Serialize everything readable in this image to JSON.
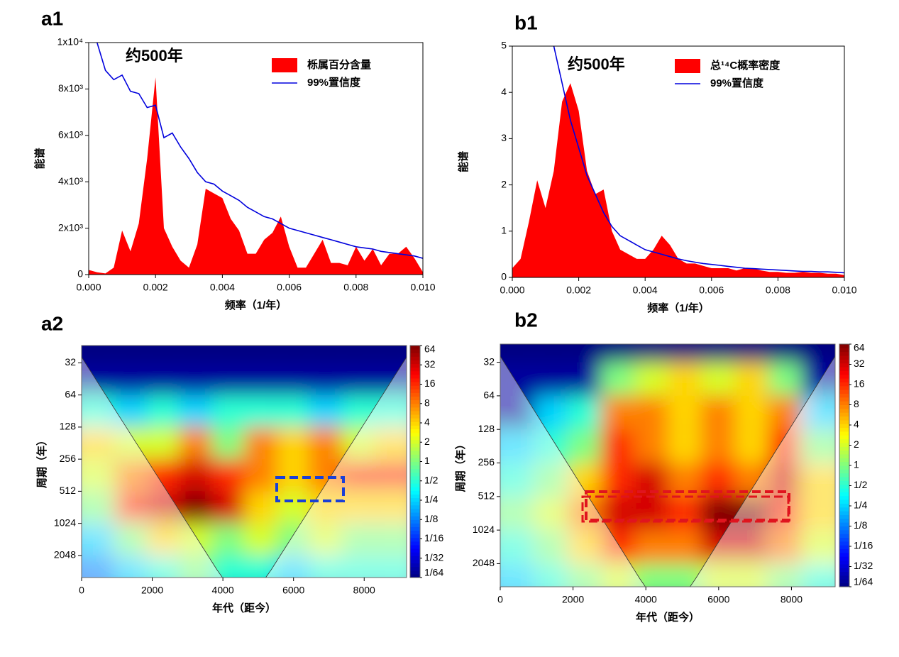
{
  "chart_data": [
    {
      "type": "area",
      "label": "a1",
      "annotation": "约500年",
      "xlabel": "频率（1/年）",
      "ylabel": "能谱",
      "xlim": [
        0,
        0.01
      ],
      "ylim": [
        0,
        10000
      ],
      "xticks": [
        {
          "value": 0,
          "label": "0.000"
        },
        0.002,
        0.004,
        0.006,
        0.008,
        {
          "value": 0.01,
          "label": "0.010"
        }
      ],
      "yticks": [
        0,
        {
          "value": 2000,
          "label": "2x10³"
        },
        {
          "value": 4000,
          "label": "4x10³"
        },
        {
          "value": 6000,
          "label": "6x10³"
        },
        {
          "value": 8000,
          "label": "8x10³"
        },
        {
          "value": 10000,
          "label": "1x10⁴"
        }
      ],
      "x": [
        0,
        0.00025,
        0.0005,
        0.00075,
        0.001,
        0.00125,
        0.0015,
        0.00175,
        0.002,
        0.00225,
        0.0025,
        0.00275,
        0.003,
        0.00325,
        0.0035,
        0.00375,
        0.004,
        0.00425,
        0.0045,
        0.00475,
        0.005,
        0.00525,
        0.0055,
        0.00575,
        0.006,
        0.00625,
        0.0065,
        0.00675,
        0.007,
        0.00725,
        0.0075,
        0.00775,
        0.008,
        0.00825,
        0.0085,
        0.00875,
        0.009,
        0.00925,
        0.0095,
        0.00975,
        0.01
      ],
      "series": [
        {
          "name": "栎属百分含量",
          "color": "#ff0000",
          "kind": "area",
          "values": [
            200,
            100,
            50,
            300,
            1900,
            1000,
            2200,
            5000,
            8500,
            2000,
            1200,
            600,
            300,
            1300,
            3700,
            3500,
            3300,
            2400,
            1900,
            900,
            900,
            1500,
            1800,
            2500,
            1200,
            300,
            300,
            900,
            1500,
            500,
            500,
            400,
            1200,
            600,
            1100,
            400,
            900,
            900,
            1200,
            700,
            100
          ]
        },
        {
          "name": "99%置信度",
          "color": "#0000dd",
          "kind": "line",
          "values": [
            null,
            10000,
            8800,
            8400,
            8600,
            7900,
            7800,
            7200,
            7300,
            5900,
            6100,
            5500,
            5000,
            4400,
            4000,
            3900,
            3600,
            3400,
            3200,
            2900,
            2700,
            2500,
            2400,
            2200,
            2000,
            1900,
            1800,
            1700,
            1600,
            1500,
            1400,
            1300,
            1200,
            1150,
            1100,
            1000,
            950,
            900,
            850,
            800,
            700
          ]
        }
      ]
    },
    {
      "type": "area",
      "label": "b1",
      "annotation": "约500年",
      "xlabel": "频率（1/年）",
      "ylabel": "能谱",
      "xlim": [
        0,
        0.01
      ],
      "ylim": [
        0,
        5
      ],
      "xticks": [
        {
          "value": 0,
          "label": "0.000"
        },
        0.002,
        0.004,
        0.006,
        0.008,
        {
          "value": 0.01,
          "label": "0.010"
        }
      ],
      "yticks": [
        0,
        1,
        2,
        3,
        4,
        5
      ],
      "x": [
        0,
        0.00025,
        0.0005,
        0.00075,
        0.001,
        0.00125,
        0.0015,
        0.00175,
        0.002,
        0.00225,
        0.0025,
        0.00275,
        0.003,
        0.00325,
        0.0035,
        0.00375,
        0.004,
        0.00425,
        0.0045,
        0.00475,
        0.005,
        0.00525,
        0.0055,
        0.00575,
        0.006,
        0.00625,
        0.0065,
        0.00675,
        0.007,
        0.00725,
        0.0075,
        0.00775,
        0.008,
        0.00825,
        0.0085,
        0.00875,
        0.009,
        0.00925,
        0.0095,
        0.00975,
        0.01
      ],
      "series": [
        {
          "name": "总¹⁴C概率密度",
          "color": "#ff0000",
          "kind": "area",
          "values": [
            0.2,
            0.4,
            1.2,
            2.1,
            1.5,
            2.3,
            3.8,
            4.2,
            3.6,
            2.3,
            1.8,
            1.9,
            1.0,
            0.6,
            0.5,
            0.4,
            0.4,
            0.6,
            0.9,
            0.7,
            0.4,
            0.3,
            0.3,
            0.25,
            0.2,
            0.2,
            0.2,
            0.15,
            0.2,
            0.2,
            0.15,
            0.12,
            0.12,
            0.1,
            0.1,
            0.12,
            0.1,
            0.1,
            0.08,
            0.08,
            0.05
          ]
        },
        {
          "name": "99%置信度",
          "color": "#0000dd",
          "kind": "line",
          "values": [
            null,
            null,
            null,
            null,
            null,
            5.0,
            4.2,
            3.4,
            2.8,
            2.2,
            1.8,
            1.4,
            1.1,
            0.9,
            0.8,
            0.7,
            0.6,
            0.55,
            0.5,
            0.45,
            0.4,
            0.36,
            0.33,
            0.3,
            0.28,
            0.26,
            0.24,
            0.22,
            0.2,
            0.19,
            0.18,
            0.17,
            0.16,
            0.15,
            0.14,
            0.13,
            0.13,
            0.12,
            0.12,
            0.11,
            0.1
          ]
        }
      ]
    },
    {
      "type": "heatmap",
      "label": "a2",
      "xlabel": "年代（距今）",
      "ylabel": "周期（年）",
      "xlim": [
        0,
        9200
      ],
      "ylim": [
        22,
        3300
      ],
      "ylog": true,
      "yreverse": true,
      "xticks": [
        0,
        2000,
        4000,
        6000,
        8000
      ],
      "yticks": [
        32,
        64,
        128,
        256,
        512,
        1024,
        2048
      ],
      "xbins": [
        0,
        920,
        1840,
        2760,
        3680,
        4600,
        5520,
        6440,
        7360,
        8280,
        9200
      ],
      "ybins": [
        22,
        32,
        64,
        128,
        256,
        512,
        1024,
        2048,
        3300
      ],
      "clim": [
        0.015625,
        64
      ],
      "cticks": [
        64,
        32,
        16,
        8,
        4,
        2,
        1,
        {
          "value": 0.5,
          "label": "1/2"
        },
        {
          "value": 0.25,
          "label": "1/4"
        },
        {
          "value": 0.125,
          "label": "1/8"
        },
        {
          "value": 0.0625,
          "label": "1/16"
        },
        {
          "value": 0.03125,
          "label": "1/32"
        },
        {
          "value": 0.015625,
          "label": "1/64"
        }
      ],
      "z": [
        [
          0.015625,
          0.015625,
          0.015625,
          0.015625,
          0.015625,
          0.015625,
          0.015625,
          0.015625,
          0.015625,
          0.015625
        ],
        [
          0.02,
          0.02,
          0.02,
          0.02,
          0.02,
          0.02,
          0.02,
          0.02,
          0.02,
          0.02
        ],
        [
          0.5,
          0.25,
          0.5,
          0.25,
          0.5,
          0.5,
          0.5,
          0.25,
          0.5,
          0.5
        ],
        [
          4,
          2,
          2,
          8,
          1,
          8,
          4,
          8,
          2,
          4
        ],
        [
          2,
          8,
          16,
          32,
          16,
          8,
          4,
          8,
          16,
          16
        ],
        [
          1,
          16,
          32,
          64,
          32,
          4,
          2,
          4,
          4,
          4
        ],
        [
          0.25,
          1,
          4,
          2,
          1,
          2,
          1,
          2,
          1,
          1
        ],
        [
          0.125,
          0.25,
          0.5,
          1,
          0.5,
          0.5,
          0.25,
          0.5,
          0.5,
          0.5
        ]
      ]
    },
    {
      "type": "heatmap",
      "label": "b2",
      "xlabel": "年代（距今）",
      "ylabel": "周期（年）",
      "xlim": [
        0,
        9200
      ],
      "ylim": [
        22,
        3300
      ],
      "ylog": true,
      "yreverse": true,
      "xticks": [
        0,
        2000,
        4000,
        6000,
        8000
      ],
      "yticks": [
        32,
        64,
        128,
        256,
        512,
        1024,
        2048
      ],
      "xbins": [
        0,
        920,
        1840,
        2760,
        3680,
        4600,
        5520,
        6440,
        7360,
        8280,
        9200
      ],
      "ybins": [
        22,
        32,
        64,
        128,
        256,
        512,
        1024,
        2048,
        3300
      ],
      "clim": [
        0.015625,
        64
      ],
      "cticks": [
        64,
        32,
        16,
        8,
        4,
        2,
        1,
        {
          "value": 0.5,
          "label": "1/2"
        },
        {
          "value": 0.25,
          "label": "1/4"
        },
        {
          "value": 0.125,
          "label": "1/8"
        },
        {
          "value": 0.0625,
          "label": "1/16"
        },
        {
          "value": 0.03125,
          "label": "1/32"
        },
        {
          "value": 0.015625,
          "label": "1/64"
        }
      ],
      "z": [
        [
          0.015625,
          0.015625,
          0.015625,
          0.015625,
          0.015625,
          0.015625,
          0.015625,
          0.015625,
          0.015625,
          0.015625
        ],
        [
          0.02,
          0.02,
          0.02,
          1,
          2,
          4,
          2,
          4,
          1,
          0.02
        ],
        [
          0.02,
          0.25,
          0.5,
          8,
          8,
          4,
          8,
          4,
          8,
          0.25
        ],
        [
          0.25,
          0.5,
          1,
          16,
          8,
          4,
          8,
          4,
          16,
          1
        ],
        [
          0.5,
          1,
          4,
          16,
          32,
          8,
          16,
          8,
          32,
          4
        ],
        [
          1,
          2,
          8,
          32,
          32,
          16,
          64,
          64,
          16,
          4
        ],
        [
          0.5,
          1,
          4,
          16,
          8,
          8,
          32,
          32,
          8,
          2
        ],
        [
          0.25,
          0.5,
          1,
          2,
          1,
          1,
          2,
          2,
          1,
          0.5
        ]
      ]
    }
  ]
}
